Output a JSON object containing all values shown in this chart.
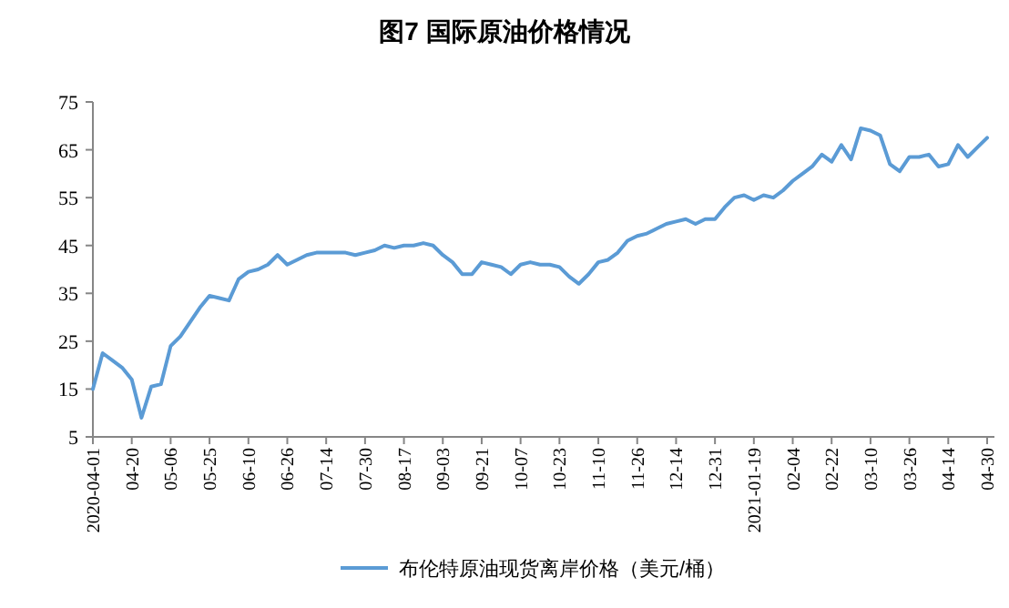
{
  "chart_data": {
    "type": "line",
    "title": "图7  国际原油价格情况",
    "categories": [
      "2020-04-01",
      null,
      null,
      null,
      "04-20",
      null,
      null,
      null,
      "05-06",
      null,
      null,
      null,
      "05-25",
      null,
      null,
      null,
      "06-10",
      null,
      null,
      null,
      "06-26",
      null,
      null,
      null,
      "07-14",
      null,
      null,
      null,
      "07-30",
      null,
      null,
      null,
      "08-17",
      null,
      null,
      null,
      "09-03",
      null,
      null,
      null,
      "09-21",
      null,
      null,
      null,
      "10-07",
      null,
      null,
      null,
      "10-23",
      null,
      null,
      null,
      "11-10",
      null,
      null,
      null,
      "11-26",
      null,
      null,
      null,
      "12-14",
      null,
      null,
      null,
      "12-31",
      null,
      null,
      null,
      "2021-01-19",
      null,
      null,
      null,
      "02-04",
      null,
      null,
      null,
      "02-22",
      null,
      null,
      null,
      "03-10",
      null,
      null,
      null,
      "03-26",
      null,
      null,
      null,
      "04-14",
      null,
      null,
      null,
      "04-30"
    ],
    "series": [
      {
        "name": "布伦特原油现货离岸价格（美元/桶）",
        "color": "#5b9bd5",
        "values": [
          15,
          22.5,
          21,
          19.5,
          17,
          9,
          15.5,
          16,
          24,
          26,
          29,
          32,
          34.5,
          34,
          33.5,
          38,
          39.5,
          40,
          41,
          43,
          41,
          42,
          43,
          43.5,
          43.5,
          43.5,
          43.5,
          43,
          43.5,
          44,
          45,
          44.5,
          45,
          45,
          45.5,
          45,
          43,
          41.5,
          39,
          39,
          41.5,
          41,
          40.5,
          39,
          41,
          41.5,
          41,
          41,
          40.5,
          38.5,
          37,
          39,
          41.5,
          42,
          43.5,
          46,
          47,
          47.5,
          48.5,
          49.5,
          50,
          50.5,
          49.5,
          50.5,
          50.5,
          53,
          55,
          55.5,
          54.5,
          55.5,
          55,
          56.5,
          58.5,
          60,
          61.5,
          64,
          62.5,
          66,
          63,
          69.5,
          69,
          68,
          62,
          60.5,
          63.5,
          63.5,
          64,
          61.5,
          62,
          66,
          63.5,
          65.5,
          67.5
        ]
      }
    ],
    "ylim": [
      5,
      75
    ],
    "yticks": [
      5,
      15,
      25,
      35,
      45,
      55,
      65,
      75
    ],
    "grid": false,
    "legend": "bottom",
    "marker": "none",
    "line_style": "solid"
  }
}
